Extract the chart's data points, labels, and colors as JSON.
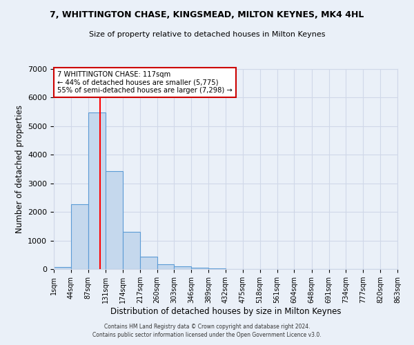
{
  "title": "7, WHITTINGTON CHASE, KINGSMEAD, MILTON KEYNES, MK4 4HL",
  "subtitle": "Size of property relative to detached houses in Milton Keynes",
  "xlabel": "Distribution of detached houses by size in Milton Keynes",
  "ylabel": "Number of detached properties",
  "bin_edges": [
    1,
    44,
    87,
    131,
    174,
    217,
    260,
    303,
    346,
    389,
    432,
    475,
    518,
    561,
    604,
    648,
    691,
    734,
    777,
    820,
    863
  ],
  "bar_heights": [
    75,
    2270,
    5475,
    3420,
    1300,
    440,
    160,
    90,
    50,
    20,
    0,
    0,
    0,
    0,
    0,
    0,
    0,
    0,
    0,
    0
  ],
  "bar_color": "#c5d8ed",
  "bar_edge_color": "#5b9bd5",
  "vline_x": 117,
  "vline_color": "#ff0000",
  "ylim": [
    0,
    7000
  ],
  "yticks": [
    0,
    1000,
    2000,
    3000,
    4000,
    5000,
    6000,
    7000
  ],
  "tick_labels": [
    "1sqm",
    "44sqm",
    "87sqm",
    "131sqm",
    "174sqm",
    "217sqm",
    "260sqm",
    "303sqm",
    "346sqm",
    "389sqm",
    "432sqm",
    "475sqm",
    "518sqm",
    "561sqm",
    "604sqm",
    "648sqm",
    "691sqm",
    "734sqm",
    "777sqm",
    "820sqm",
    "863sqm"
  ],
  "annotation_text": "7 WHITTINGTON CHASE: 117sqm\n← 44% of detached houses are smaller (5,775)\n55% of semi-detached houses are larger (7,298) →",
  "annotation_box_color": "#ffffff",
  "annotation_box_edge": "#cc0000",
  "grid_color": "#d0d8e8",
  "bg_color": "#eaf0f8",
  "footer_line1": "Contains HM Land Registry data © Crown copyright and database right 2024.",
  "footer_line2": "Contains public sector information licensed under the Open Government Licence v3.0."
}
